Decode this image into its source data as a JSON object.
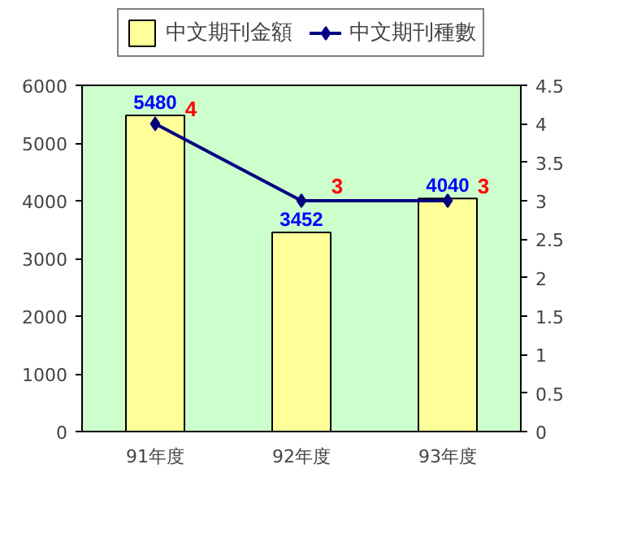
{
  "chart_data": {
    "type": "bar",
    "categories": [
      "91年度",
      "92年度",
      "93年度"
    ],
    "series": [
      {
        "name": "中文期刊金額",
        "color": "#ffff99",
        "values": [
          5480,
          3452,
          4040
        ]
      },
      {
        "name": "中文期刊種數",
        "color": "#000080",
        "type": "line",
        "axis": "y2",
        "values": [
          4,
          3,
          3
        ]
      }
    ],
    "ylim": [
      0,
      6000
    ],
    "yticks": [
      0,
      1000,
      2000,
      3000,
      4000,
      5000,
      6000
    ],
    "y2lim": [
      0,
      4.5
    ],
    "y2ticks": [
      0,
      0.5,
      1,
      1.5,
      2,
      2.5,
      3,
      3.5,
      4,
      4.5
    ],
    "data_labels": true,
    "legend": "top",
    "grid": false,
    "marker": "diamond"
  }
}
